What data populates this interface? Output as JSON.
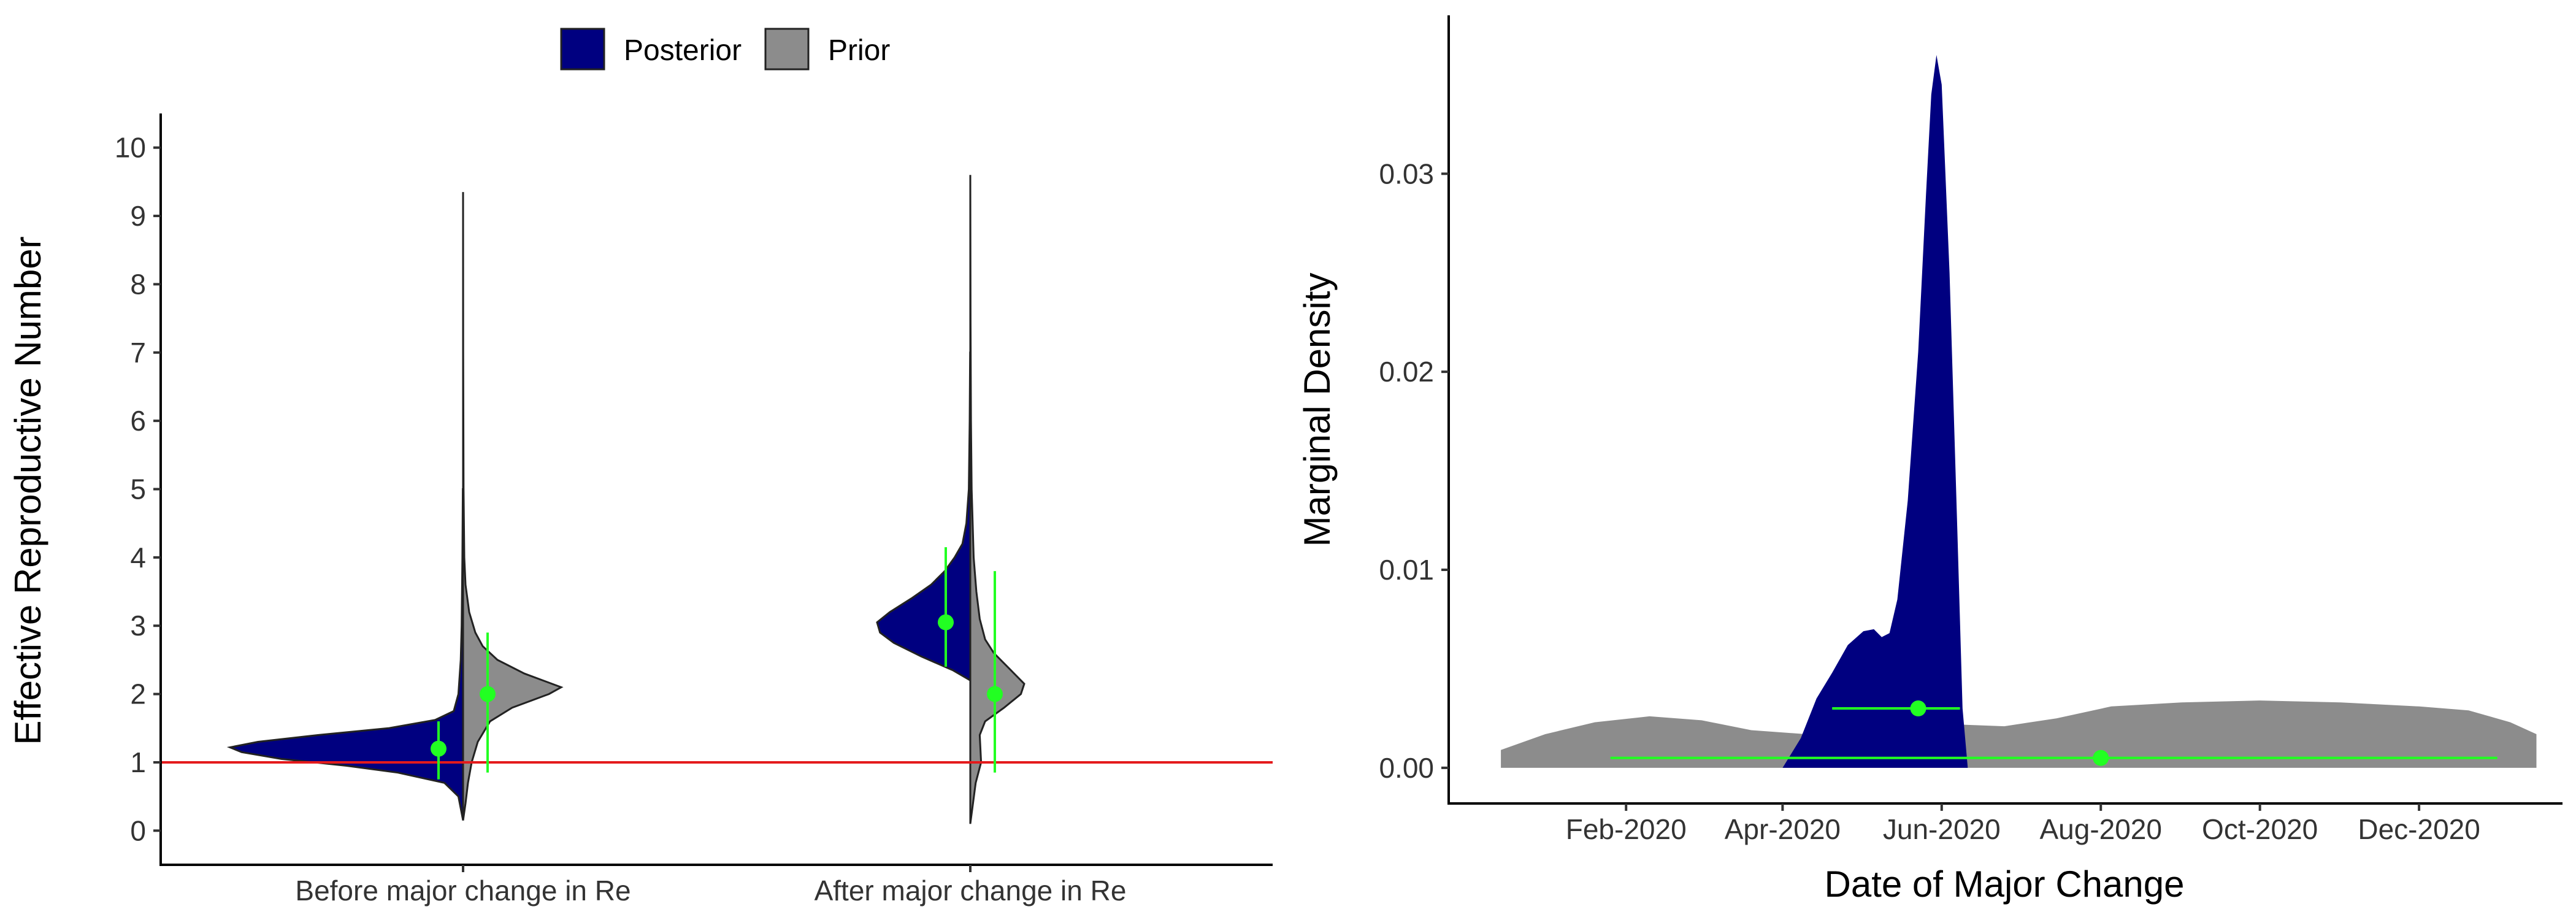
{
  "colors": {
    "posterior": "#000080",
    "prior": "#8c8c8c",
    "reference_line": "#e41a1c",
    "summary": "#22ff22",
    "outline": "#222222"
  },
  "chart_data": [
    {
      "type": "violin",
      "title": "",
      "ylabel": "Effective Reproductive Number",
      "xlabel": "",
      "ylim": [
        -0.5,
        10.5
      ],
      "yticks": [
        0,
        1,
        2,
        3,
        4,
        5,
        6,
        7,
        8,
        9,
        10
      ],
      "categories": [
        "Before major change in Re",
        "After major change in Re"
      ],
      "reference_line": {
        "y": 1
      },
      "legend": {
        "position": "top-center",
        "entries": [
          {
            "label": "Posterior",
            "color": "#000080"
          },
          {
            "label": "Prior",
            "color": "#8c8c8c"
          }
        ]
      },
      "series": [
        {
          "name": "Posterior",
          "side": "left",
          "groups": [
            {
              "category": "Before major change in Re",
              "median": 1.2,
              "interval": [
                0.75,
                1.6
              ],
              "density": [
                [
                  0.15,
                  0.0
                ],
                [
                  0.5,
                  0.02
                ],
                [
                  0.7,
                  0.08
                ],
                [
                  0.85,
                  0.28
                ],
                [
                  0.95,
                  0.5
                ],
                [
                  1.05,
                  0.78
                ],
                [
                  1.15,
                  0.95
                ],
                [
                  1.22,
                  1.0
                ],
                [
                  1.3,
                  0.88
                ],
                [
                  1.4,
                  0.62
                ],
                [
                  1.5,
                  0.32
                ],
                [
                  1.62,
                  0.12
                ],
                [
                  1.75,
                  0.04
                ],
                [
                  2.0,
                  0.02
                ],
                [
                  2.5,
                  0.01
                ],
                [
                  3.0,
                  0.006
                ],
                [
                  4.0,
                  0.003
                ],
                [
                  5.0,
                  0.001
                ]
              ]
            },
            {
              "category": "After major change in Re",
              "median": 3.05,
              "interval": [
                2.4,
                4.15
              ],
              "density": [
                [
                  2.2,
                  0.0
                ],
                [
                  2.35,
                  0.18
                ],
                [
                  2.55,
                  0.5
                ],
                [
                  2.75,
                  0.78
                ],
                [
                  2.9,
                  0.92
                ],
                [
                  3.05,
                  0.95
                ],
                [
                  3.2,
                  0.82
                ],
                [
                  3.4,
                  0.6
                ],
                [
                  3.6,
                  0.4
                ],
                [
                  3.8,
                  0.26
                ],
                [
                  4.0,
                  0.16
                ],
                [
                  4.2,
                  0.08
                ],
                [
                  4.5,
                  0.04
                ],
                [
                  5.0,
                  0.015
                ],
                [
                  6.0,
                  0.006
                ],
                [
                  7.0,
                  0.002
                ]
              ]
            }
          ]
        },
        {
          "name": "Prior",
          "side": "right",
          "groups": [
            {
              "category": "Before major change in Re",
              "median": 2.0,
              "interval": [
                0.85,
                2.9
              ],
              "density": [
                [
                  0.15,
                  0.0
                ],
                [
                  0.4,
                  0.02
                ],
                [
                  0.7,
                  0.04
                ],
                [
                  1.0,
                  0.07
                ],
                [
                  1.3,
                  0.12
                ],
                [
                  1.6,
                  0.22
                ],
                [
                  1.8,
                  0.4
                ],
                [
                  2.0,
                  0.7
                ],
                [
                  2.1,
                  0.8
                ],
                [
                  2.3,
                  0.5
                ],
                [
                  2.5,
                  0.28
                ],
                [
                  2.7,
                  0.16
                ],
                [
                  2.9,
                  0.1
                ],
                [
                  3.2,
                  0.05
                ],
                [
                  3.6,
                  0.02
                ],
                [
                  4.0,
                  0.01
                ],
                [
                  5.0,
                  0.004
                ],
                [
                  7.0,
                  0.001
                ],
                [
                  9.35,
                  0.0
                ]
              ]
            },
            {
              "category": "After major change in Re",
              "median": 2.0,
              "interval": [
                0.85,
                3.8
              ],
              "density": [
                [
                  0.1,
                  0.0
                ],
                [
                  0.4,
                  0.04
                ],
                [
                  0.7,
                  0.08
                ],
                [
                  0.85,
                  0.12
                ],
                [
                  1.0,
                  0.16
                ],
                [
                  1.2,
                  0.15
                ],
                [
                  1.4,
                  0.14
                ],
                [
                  1.6,
                  0.22
                ],
                [
                  1.8,
                  0.5
                ],
                [
                  2.0,
                  0.75
                ],
                [
                  2.15,
                  0.8
                ],
                [
                  2.35,
                  0.6
                ],
                [
                  2.6,
                  0.35
                ],
                [
                  2.8,
                  0.22
                ],
                [
                  3.1,
                  0.14
                ],
                [
                  3.5,
                  0.09
                ],
                [
                  4.0,
                  0.05
                ],
                [
                  5.0,
                  0.02
                ],
                [
                  6.0,
                  0.01
                ],
                [
                  7.5,
                  0.004
                ],
                [
                  9.6,
                  0.0
                ]
              ]
            }
          ]
        }
      ]
    },
    {
      "type": "area",
      "title": "",
      "xlabel": "Date of Major Change",
      "ylabel": "Marginal Density",
      "ylim": [
        -0.0018,
        0.038
      ],
      "yticks": [
        {
          "value": 0,
          "label": "0.00"
        },
        {
          "value": 0.01,
          "label": "0.01"
        },
        {
          "value": 0.02,
          "label": "0.02"
        },
        {
          "value": 0.03,
          "label": "0.03"
        }
      ],
      "xlim": [
        "2019-11-25",
        "2021-01-25"
      ],
      "xticks": [
        {
          "date": "2020-02-01",
          "label": "Feb-2020"
        },
        {
          "date": "2020-04-01",
          "label": "Apr-2020"
        },
        {
          "date": "2020-06-01",
          "label": "Jun-2020"
        },
        {
          "date": "2020-08-01",
          "label": "Aug-2020"
        },
        {
          "date": "2020-10-01",
          "label": "Oct-2020"
        },
        {
          "date": "2020-12-01",
          "label": "Dec-2020"
        }
      ],
      "series": [
        {
          "name": "Prior",
          "median": "2020-08-01",
          "interval": [
            "2020-01-26",
            "2020-12-31"
          ],
          "median_y": 0.0005,
          "points": [
            [
              "2019-12-15",
              0.0009
            ],
            [
              "2020-01-01",
              0.0017
            ],
            [
              "2020-01-20",
              0.0023
            ],
            [
              "2020-02-10",
              0.0026
            ],
            [
              "2020-03-01",
              0.0024
            ],
            [
              "2020-03-20",
              0.0019
            ],
            [
              "2020-04-10",
              0.0017
            ],
            [
              "2020-05-01",
              0.0018
            ],
            [
              "2020-05-20",
              0.0021
            ],
            [
              "2020-06-05",
              0.0022
            ],
            [
              "2020-06-25",
              0.0021
            ],
            [
              "2020-07-15",
              0.0025
            ],
            [
              "2020-08-05",
              0.0031
            ],
            [
              "2020-09-01",
              0.0033
            ],
            [
              "2020-10-01",
              0.0034
            ],
            [
              "2020-11-01",
              0.0033
            ],
            [
              "2020-12-01",
              0.0031
            ],
            [
              "2020-12-20",
              0.0029
            ],
            [
              "2021-01-05",
              0.0023
            ],
            [
              "2021-01-15",
              0.0017
            ]
          ]
        },
        {
          "name": "Posterior",
          "median": "2020-05-23",
          "interval": [
            "2020-04-20",
            "2020-06-08"
          ],
          "median_y": 0.003,
          "points": [
            [
              "2020-04-01",
              0.0
            ],
            [
              "2020-04-08",
              0.0015
            ],
            [
              "2020-04-14",
              0.0035
            ],
            [
              "2020-04-20",
              0.0048
            ],
            [
              "2020-04-26",
              0.0062
            ],
            [
              "2020-05-02",
              0.0069
            ],
            [
              "2020-05-06",
              0.007
            ],
            [
              "2020-05-09",
              0.0066
            ],
            [
              "2020-05-12",
              0.0068
            ],
            [
              "2020-05-15",
              0.0085
            ],
            [
              "2020-05-19",
              0.0135
            ],
            [
              "2020-05-23",
              0.021
            ],
            [
              "2020-05-26",
              0.029
            ],
            [
              "2020-05-28",
              0.034
            ],
            [
              "2020-05-30",
              0.036
            ],
            [
              "2020-06-01",
              0.0345
            ],
            [
              "2020-06-04",
              0.025
            ],
            [
              "2020-06-07",
              0.012
            ],
            [
              "2020-06-09",
              0.003
            ],
            [
              "2020-06-11",
              0.0
            ]
          ]
        }
      ]
    }
  ]
}
